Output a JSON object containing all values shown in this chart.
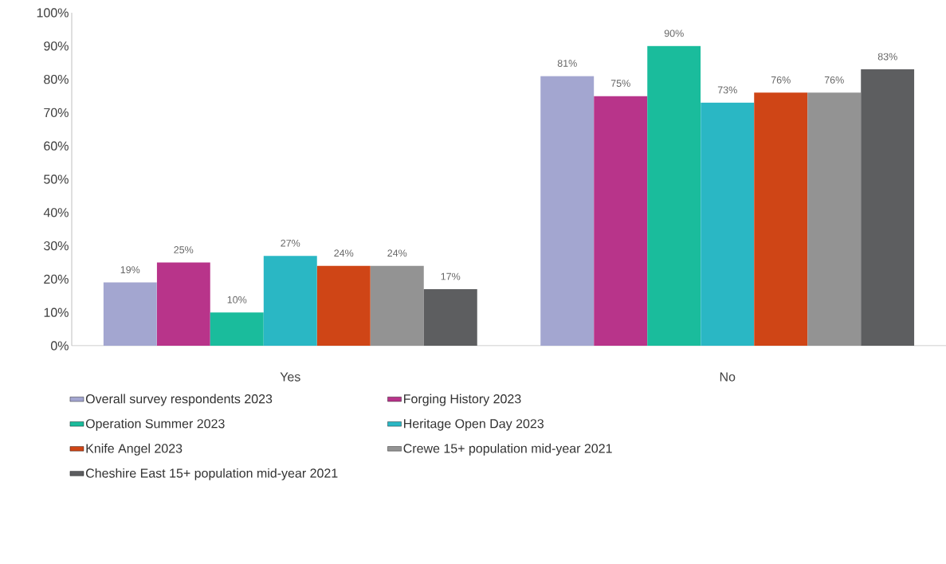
{
  "chart_data": {
    "type": "bar",
    "categories": [
      "Yes",
      "No"
    ],
    "series": [
      {
        "name": "Overall survey respondents 2023",
        "color": "#a3a6d0",
        "values": [
          19,
          81
        ],
        "value_labels": [
          "19%",
          "81%"
        ]
      },
      {
        "name": "Forging History 2023",
        "color": "#b8348a",
        "values": [
          25,
          75
        ],
        "value_labels": [
          "25%",
          "75%"
        ]
      },
      {
        "name": "Operation Summer 2023",
        "color": "#1abc9c",
        "values": [
          10,
          90
        ],
        "value_labels": [
          "10%",
          "90%"
        ]
      },
      {
        "name": "Heritage Open Day 2023",
        "color": "#2ab7c4",
        "values": [
          27,
          73
        ],
        "value_labels": [
          "27%",
          "73%"
        ]
      },
      {
        "name": "Knife Angel 2023",
        "color": "#cf4516",
        "values": [
          24,
          76
        ],
        "value_labels": [
          "24%",
          "76%"
        ]
      },
      {
        "name": "Crewe 15+ population mid-year 2021",
        "color": "#939393",
        "values": [
          24,
          76
        ],
        "value_labels": [
          "24%",
          "76%"
        ]
      },
      {
        "name": "Cheshire East 15+ population mid-year 2021",
        "color": "#5d5e60",
        "values": [
          17,
          83
        ],
        "value_labels": [
          "17%",
          "83%"
        ]
      }
    ],
    "ylim": [
      0,
      100
    ],
    "yticks": [
      {
        "value": 0,
        "label": "0%"
      },
      {
        "value": 10,
        "label": "10%"
      },
      {
        "value": 20,
        "label": "20%"
      },
      {
        "value": 30,
        "label": "30%"
      },
      {
        "value": 40,
        "label": "40%"
      },
      {
        "value": 50,
        "label": "50%"
      },
      {
        "value": 60,
        "label": "60%"
      },
      {
        "value": 70,
        "label": "70%"
      },
      {
        "value": 80,
        "label": "80%"
      },
      {
        "value": 90,
        "label": "90%"
      },
      {
        "value": 100,
        "label": "100%"
      }
    ],
    "grid": false,
    "legend": "bottom"
  }
}
